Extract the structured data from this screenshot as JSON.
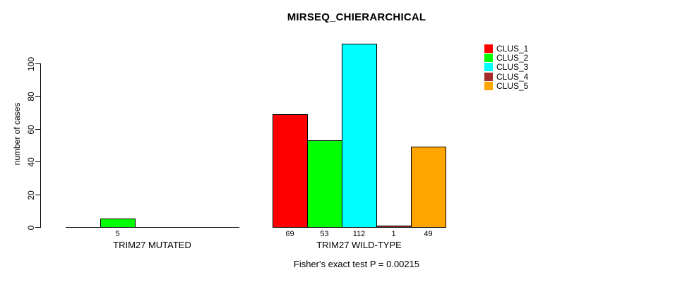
{
  "chart_data": {
    "type": "bar",
    "title": "MIRSEQ_CHIERARCHICAL",
    "ylabel": "number of cases",
    "xlabel": "",
    "yticks": [
      0,
      20,
      40,
      60,
      80,
      100
    ],
    "ylim": [
      0,
      115
    ],
    "grid": false,
    "legend_position": "top-right",
    "series": [
      {
        "name": "CLUS_1",
        "color": "#FF0000"
      },
      {
        "name": "CLUS_2",
        "color": "#00FF00"
      },
      {
        "name": "CLUS_3",
        "color": "#00FFFF"
      },
      {
        "name": "CLUS_4",
        "color": "#A52A2A"
      },
      {
        "name": "CLUS_5",
        "color": "#FFA500"
      }
    ],
    "categories": [
      "TRIM27 MUTATED",
      "TRIM27 WILD-TYPE"
    ],
    "groups": [
      {
        "label": "TRIM27 MUTATED",
        "values": [
          0,
          5,
          0,
          0,
          0
        ],
        "bar_labels": [
          "",
          "5",
          "",
          "",
          ""
        ]
      },
      {
        "label": "TRIM27 WILD-TYPE",
        "values": [
          69,
          53,
          112,
          1,
          49
        ],
        "bar_labels": [
          "69",
          "53",
          "112",
          "1",
          "49"
        ]
      }
    ],
    "footnote": "Fisher's exact test P = 0.00215"
  }
}
